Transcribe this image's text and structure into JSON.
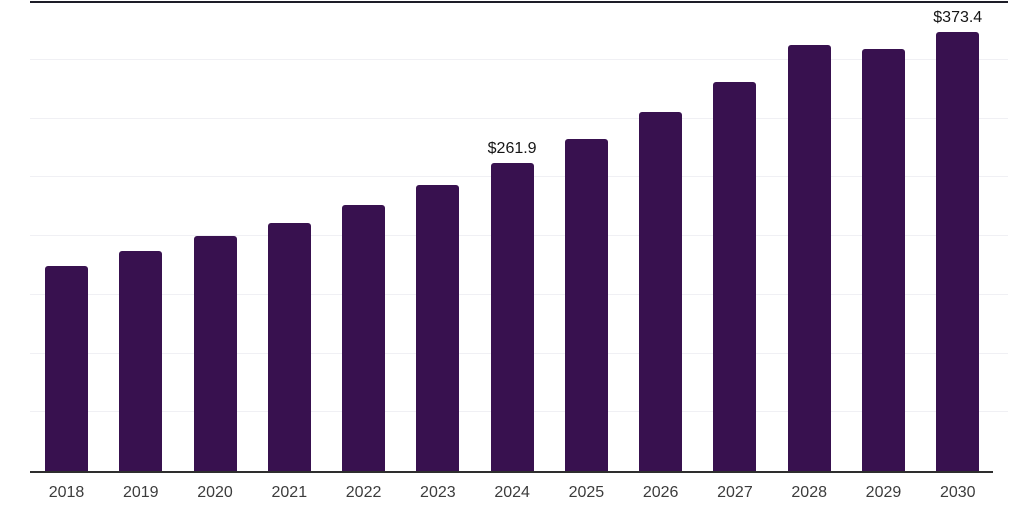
{
  "chart_data": {
    "type": "bar",
    "title": "",
    "categories": [
      "2018",
      "2019",
      "2020",
      "2021",
      "2022",
      "2023",
      "2024",
      "2025",
      "2026",
      "2027",
      "2028",
      "2029",
      "2030"
    ],
    "values": [
      174.5,
      187.2,
      199.6,
      211.1,
      226.4,
      243.4,
      261.9,
      282.6,
      305.5,
      331.1,
      362.6,
      359.1,
      373.4
    ],
    "labeled_points": [
      {
        "category": "2024",
        "label": "$261.9",
        "value": 261.9
      },
      {
        "category": "2030",
        "label": "$373.4",
        "value": 373.4
      }
    ],
    "xlabel": "",
    "ylabel": "",
    "ylim": [
      0,
      400
    ],
    "grid_step": 50,
    "grid": "horizontal-only, light gray, no y-axis tick labels",
    "legend": "none",
    "bar_color": "#38114F",
    "gridline_color": "#f0f0f4",
    "axis_line_color": "#2e2e2e",
    "top_border_color": "#1d1d28",
    "tick_label_color": "#3c3c3c",
    "data_label_color": "#151515",
    "background_color": "#ffffff"
  }
}
